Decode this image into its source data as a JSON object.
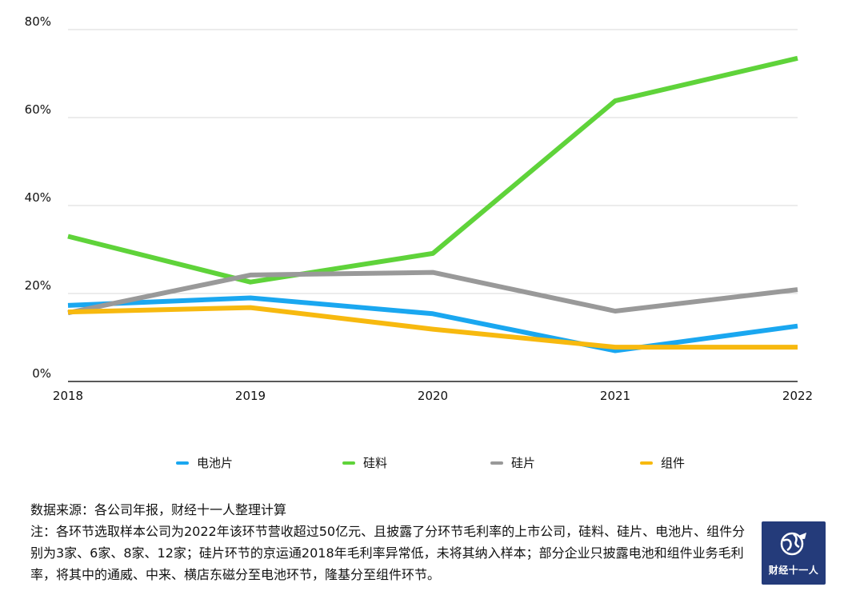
{
  "chart_data": {
    "type": "line",
    "categories": [
      "2018",
      "2019",
      "2020",
      "2021",
      "2022"
    ],
    "yticks": [
      "0%",
      "20%",
      "40%",
      "60%",
      "80%"
    ],
    "ylim": [
      0,
      80
    ],
    "y_unit": "%",
    "grid": true,
    "legend_position": "bottom",
    "series": [
      {
        "name": "电池片",
        "color": "#1aa7f0",
        "values": [
          17.3,
          19.0,
          15.4,
          7.0,
          12.6
        ]
      },
      {
        "name": "硅料",
        "color": "#5fd33a",
        "values": [
          33.0,
          22.6,
          29.1,
          63.8,
          73.5
        ]
      },
      {
        "name": "硅片",
        "color": "#999999",
        "values": [
          15.6,
          24.2,
          24.8,
          16.0,
          20.9
        ]
      },
      {
        "name": "组件",
        "color": "#f7b90f",
        "values": [
          15.8,
          16.8,
          11.9,
          7.8,
          7.8
        ]
      }
    ]
  },
  "notes": {
    "source": "数据来源：各公司年报，财经十一人整理计算",
    "note": "注：各环节选取样本公司为2022年该环节营收超过50亿元、且披露了分环节毛利率的上市公司，硅料、硅片、电池片、组件分别为3家、6家、8家、12家；硅片环节的京运通2018年毛利率异常低，未将其纳入样本；部分企业只披露电池和组件业务毛利率，将其中的通威、中来、横店东磁分至电池环节，隆基分至组件环节。"
  },
  "logo": {
    "text": "财经十一人"
  }
}
